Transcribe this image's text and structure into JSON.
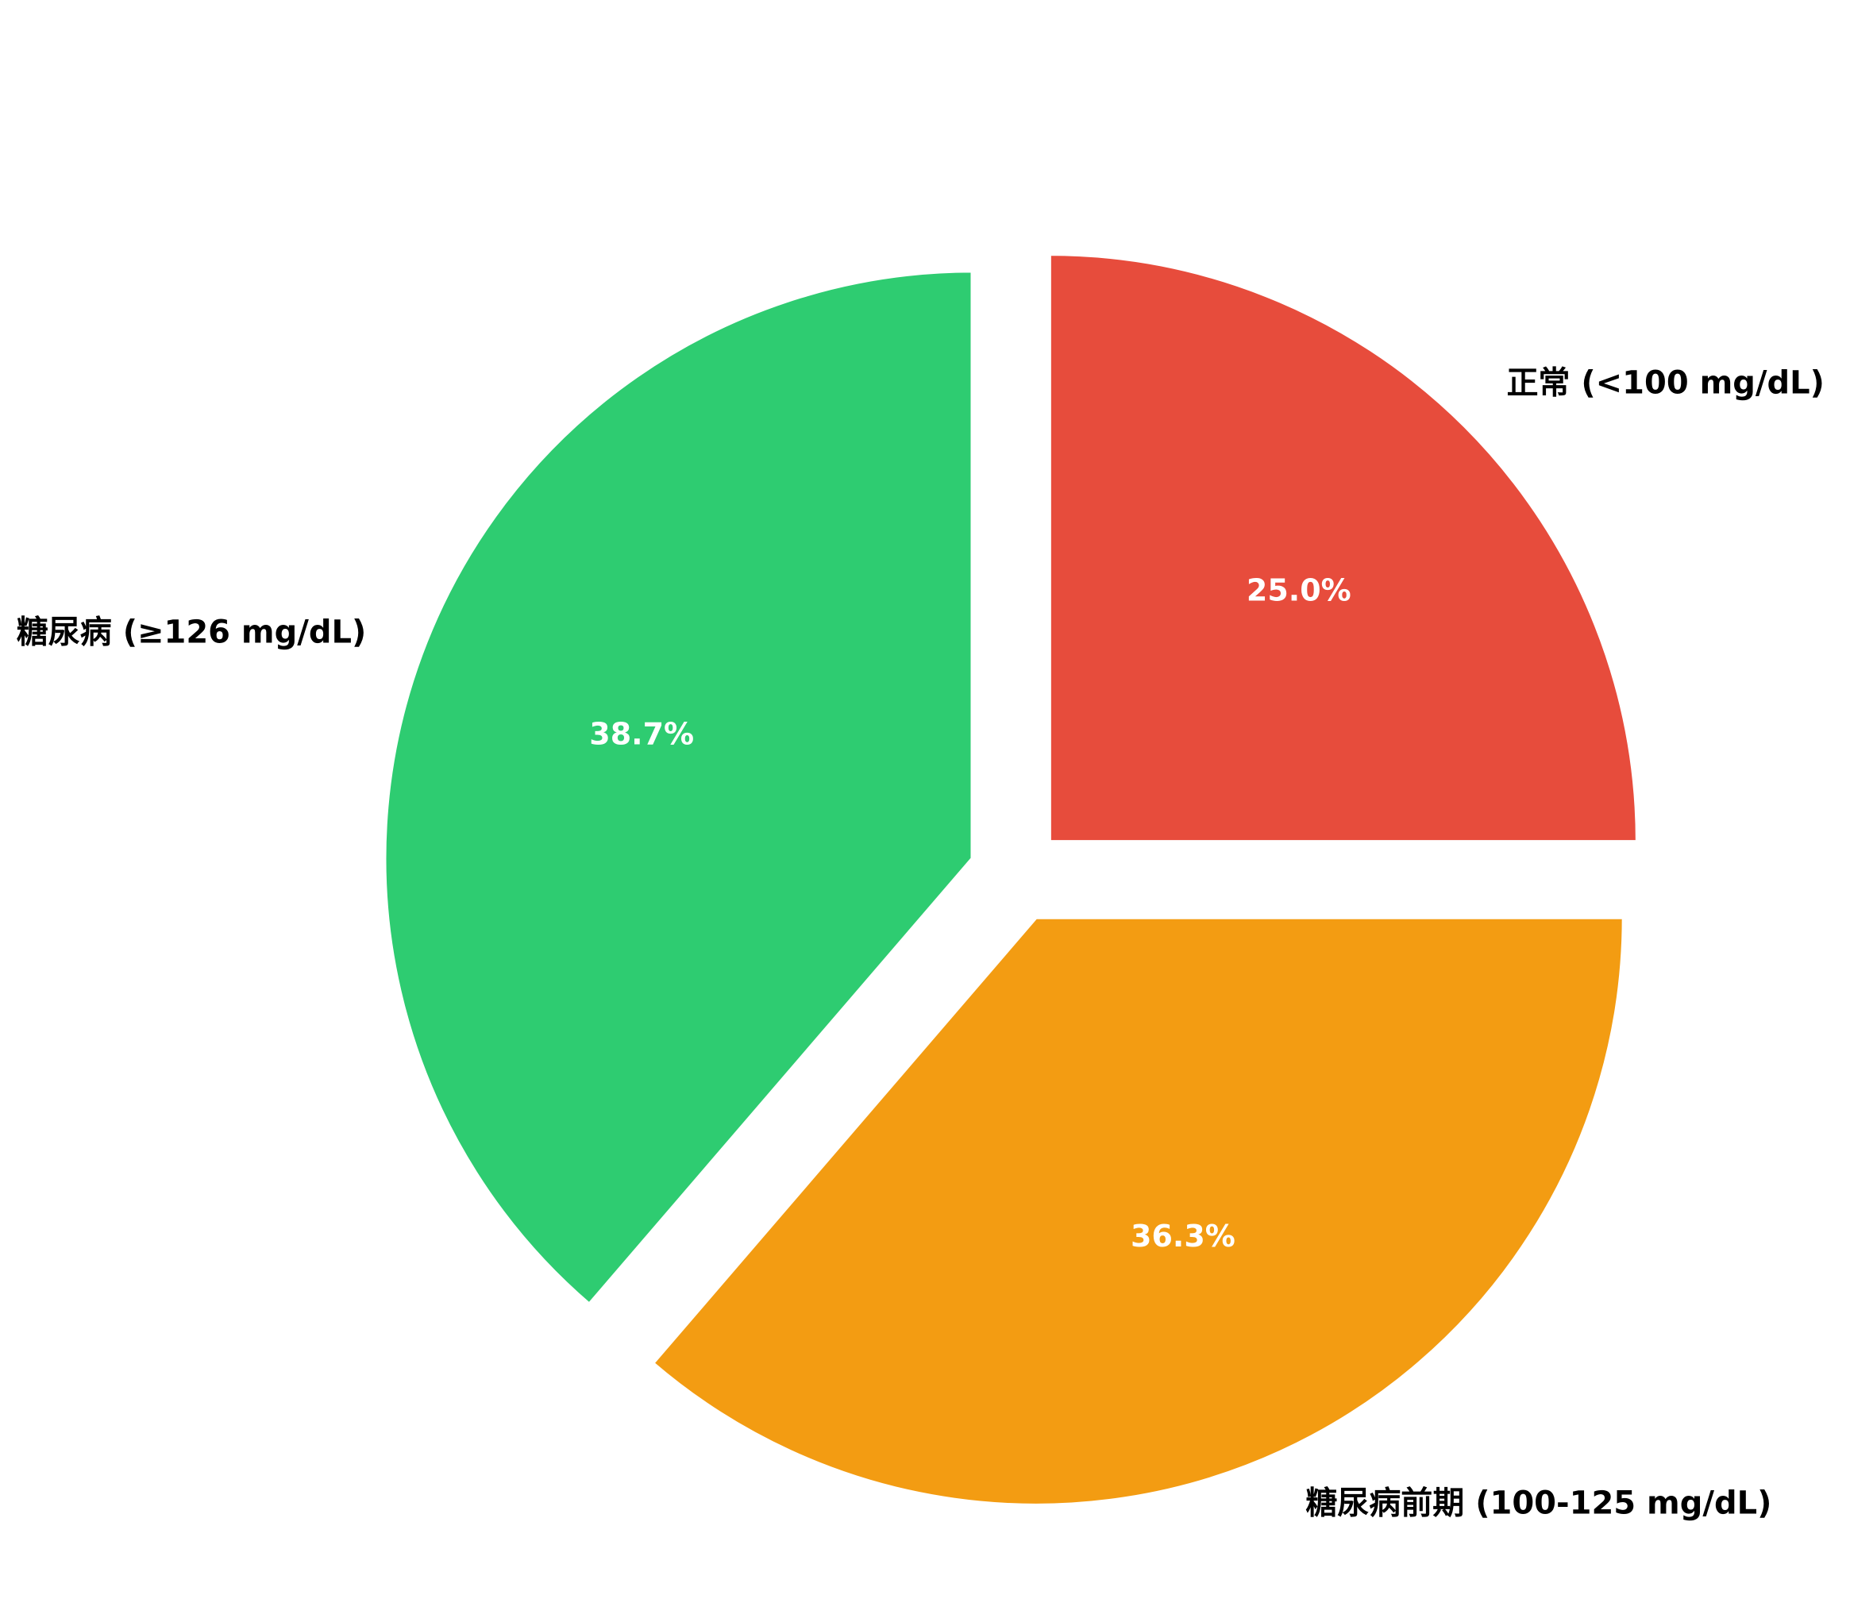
{
  "chart_data": {
    "type": "pie",
    "title": "",
    "start_angle_deg": 90,
    "direction": "clockwise",
    "slices": [
      {
        "label": "正常 (<100 mg/dL)",
        "value": 25.0,
        "percent_label": "25.0%",
        "color": "#E74C3C",
        "exploded": true
      },
      {
        "label": "糖尿病前期 (100-125 mg/dL)",
        "value": 36.3,
        "percent_label": "36.3%",
        "color": "#F39C12",
        "exploded": true
      },
      {
        "label": "糖尿病 (≥126 mg/dL)",
        "value": 38.7,
        "percent_label": "38.7%",
        "color": "#2ECC71",
        "exploded": true
      }
    ]
  }
}
